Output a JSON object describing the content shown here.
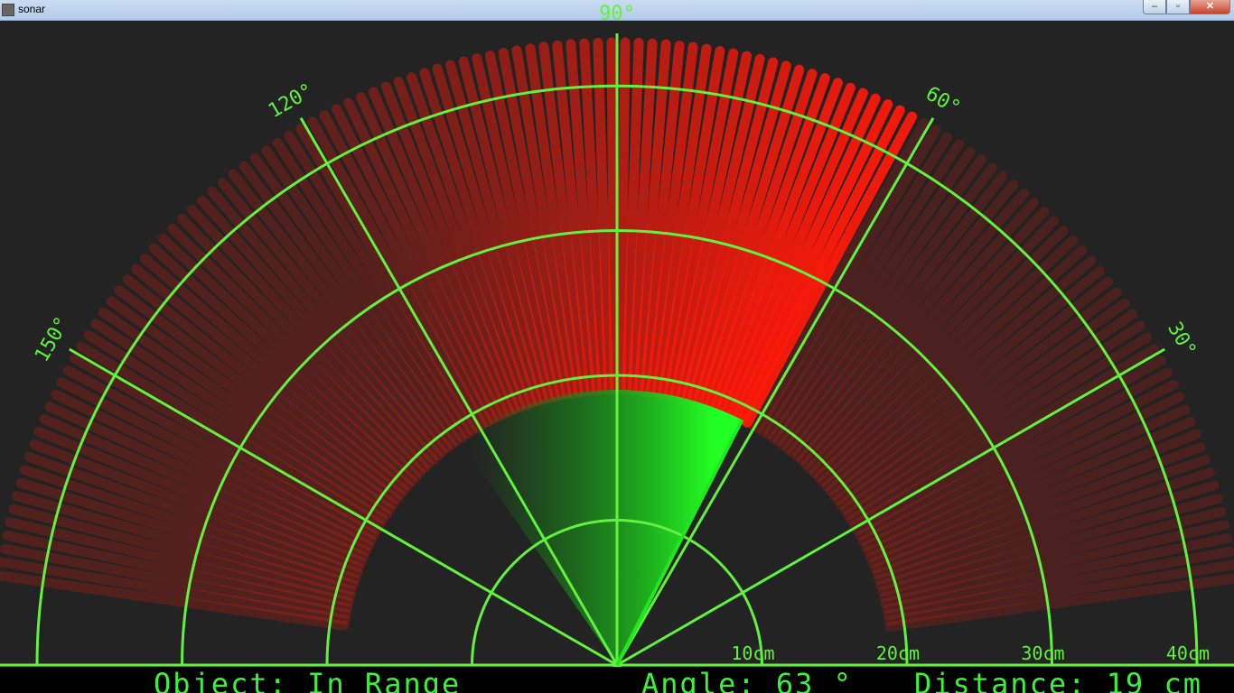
{
  "window": {
    "title": "sonar",
    "controls": {
      "minimize": "–",
      "maximize": "▫",
      "close": "✕"
    }
  },
  "radar": {
    "angle_labels": [
      "30°",
      "60°",
      "90°",
      "120°",
      "150°"
    ],
    "distance_labels": [
      "10cm",
      "20cm",
      "30cm",
      "40cm"
    ],
    "sweep": {
      "current_angle_deg": 63,
      "detected_distance_cm": 19,
      "max_range_cm": 40
    },
    "colors": {
      "grid": "#62f23e",
      "sweep_line": "#1fe81f",
      "object": "#ff1a0a",
      "background": "#232323"
    }
  },
  "status": {
    "object_text": "Object: In Range",
    "angle_text": "Angle: 63 °",
    "distance_text": "Distance: 19 cm"
  }
}
